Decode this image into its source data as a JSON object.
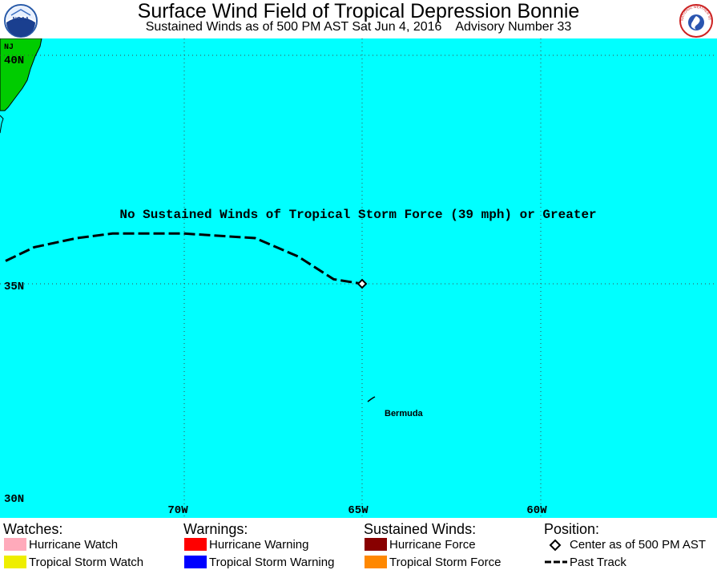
{
  "header": {
    "title": "Surface Wind Field of Tropical Depression Bonnie",
    "subtitle": "Sustained Winds as of 500 PM AST Sat Jun 4, 2016    Advisory Number 33",
    "logo_left_text": "NOAA",
    "logo_right_text": "NATIONAL WEATHER SERVICE"
  },
  "map": {
    "ocean_color": "#00ffff",
    "land_color": "#00cc00",
    "notice": "No Sustained Winds of Tropical Storm Force (39 mph) or Greater",
    "state_label": "NJ",
    "place_label": "Bermuda",
    "lat_labels": [
      "40N",
      "35N",
      "30N"
    ],
    "lon_labels": [
      "70W",
      "65W",
      "60W"
    ],
    "storm_center": {
      "lon": -65.0,
      "lat": 35.0
    },
    "past_track": [
      {
        "lon": -75.0,
        "lat": 35.5
      },
      {
        "lon": -74.2,
        "lat": 35.8
      },
      {
        "lon": -73.0,
        "lat": 36.0
      },
      {
        "lon": -72.0,
        "lat": 36.1
      },
      {
        "lon": -70.0,
        "lat": 36.1
      },
      {
        "lon": -68.0,
        "lat": 36.0
      },
      {
        "lon": -66.8,
        "lat": 35.6
      },
      {
        "lon": -65.8,
        "lat": 35.1
      },
      {
        "lon": -65.0,
        "lat": 35.0
      }
    ]
  },
  "legend": {
    "watches": {
      "heading": "Watches:",
      "items": [
        {
          "label": "Hurricane Watch",
          "color": "#ffaabb"
        },
        {
          "label": "Tropical Storm Watch",
          "color": "#eeee00"
        }
      ]
    },
    "warnings": {
      "heading": "Warnings:",
      "items": [
        {
          "label": "Hurricane Warning",
          "color": "#ff0000"
        },
        {
          "label": "Tropical Storm Warning",
          "color": "#0000ff"
        }
      ]
    },
    "winds": {
      "heading": "Sustained Winds:",
      "items": [
        {
          "label": "Hurricane Force",
          "color": "#880000"
        },
        {
          "label": "Tropical Storm Force",
          "color": "#ff8800"
        }
      ]
    },
    "position": {
      "heading": "Position:",
      "center_label": "Center as of 500 PM AST",
      "track_label": "Past Track"
    }
  }
}
